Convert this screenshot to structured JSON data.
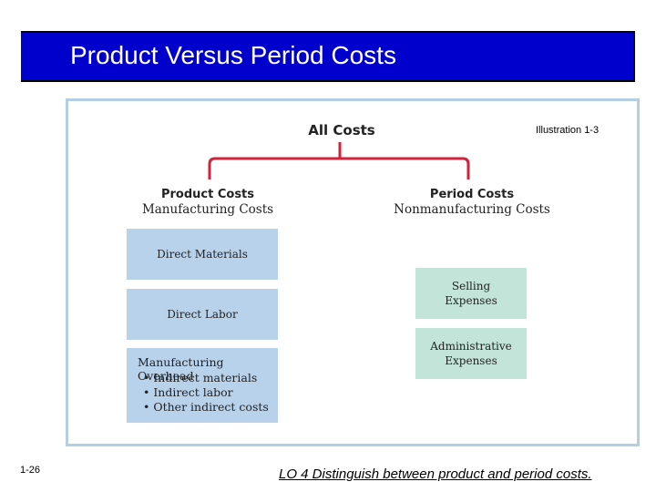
{
  "header": {
    "title": "Product Versus Period Costs"
  },
  "diagram": {
    "illustration_label": "Illustration 1-3",
    "root_label": "All Costs",
    "product": {
      "title": "Product Costs",
      "subtitle": "Manufacturing Costs",
      "boxes": [
        {
          "label": "Direct Materials"
        },
        {
          "label": "Direct Labor"
        }
      ],
      "overhead": {
        "title": "Manufacturing Overhead",
        "items": [
          "• Indirect materials",
          "• Indirect labor",
          "• Other indirect costs"
        ]
      }
    },
    "period": {
      "title": "Period Costs",
      "subtitle": "Nonmanufacturing Costs",
      "boxes": [
        {
          "line1": "Selling",
          "line2": "Expenses"
        },
        {
          "line1": "Administrative",
          "line2": "Expenses"
        }
      ]
    },
    "colors": {
      "connector": "#d2233a",
      "product_box": "#b9d2eb",
      "period_box": "#c3e4d8",
      "frame": "#b3cfe6",
      "header_bar": "#0000cc",
      "header_side": "#7f7f7f"
    }
  },
  "footer": {
    "page_number": "1-26",
    "learning_objective": "LO 4  Distinguish between product and period costs."
  }
}
